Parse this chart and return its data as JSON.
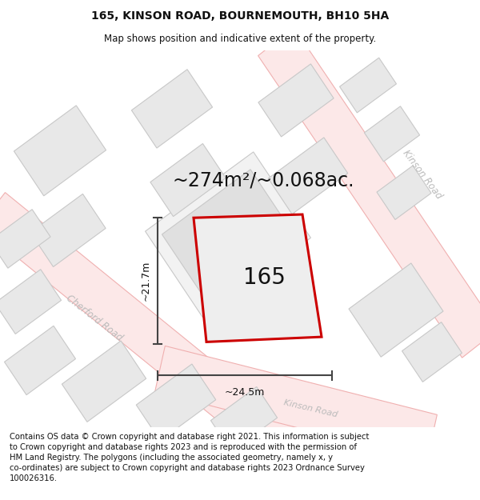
{
  "title": "165, KINSON ROAD, BOURNEMOUTH, BH10 5HA",
  "subtitle": "Map shows position and indicative extent of the property.",
  "area_text": "~274m²/~0.068ac.",
  "property_label": "165",
  "dim_width": "~24.5m",
  "dim_height": "~21.7m",
  "road_label_kinson_top": "Kinson Road",
  "road_label_cherford": "Cherford Road",
  "road_label_kinson_bot": "Kinson Road",
  "footer_text": "Contains OS data © Crown copyright and database right 2021. This information is subject to Crown copyright and database rights 2023 and is reproduced with the permission of HM Land Registry. The polygons (including the associated geometry, namely x, y co-ordinates) are subject to Crown copyright and database rights 2023 Ordnance Survey 100026316.",
  "bg_color": "#ffffff",
  "building_fill": "#e8e8e8",
  "building_edge": "#c8c8c8",
  "road_line_color": "#f0b0b0",
  "road_fill_color": "#fce8e8",
  "property_fill": "#eeeeee",
  "property_edge": "#cc0000",
  "dim_line_color": "#444444",
  "road_label_color": "#bbbbbb",
  "text_color": "#111111",
  "footer_fontsize": 7.2,
  "title_fontsize": 10,
  "subtitle_fontsize": 8.5,
  "area_fontsize": 17,
  "label_fontsize": 20,
  "dim_fontsize": 9
}
